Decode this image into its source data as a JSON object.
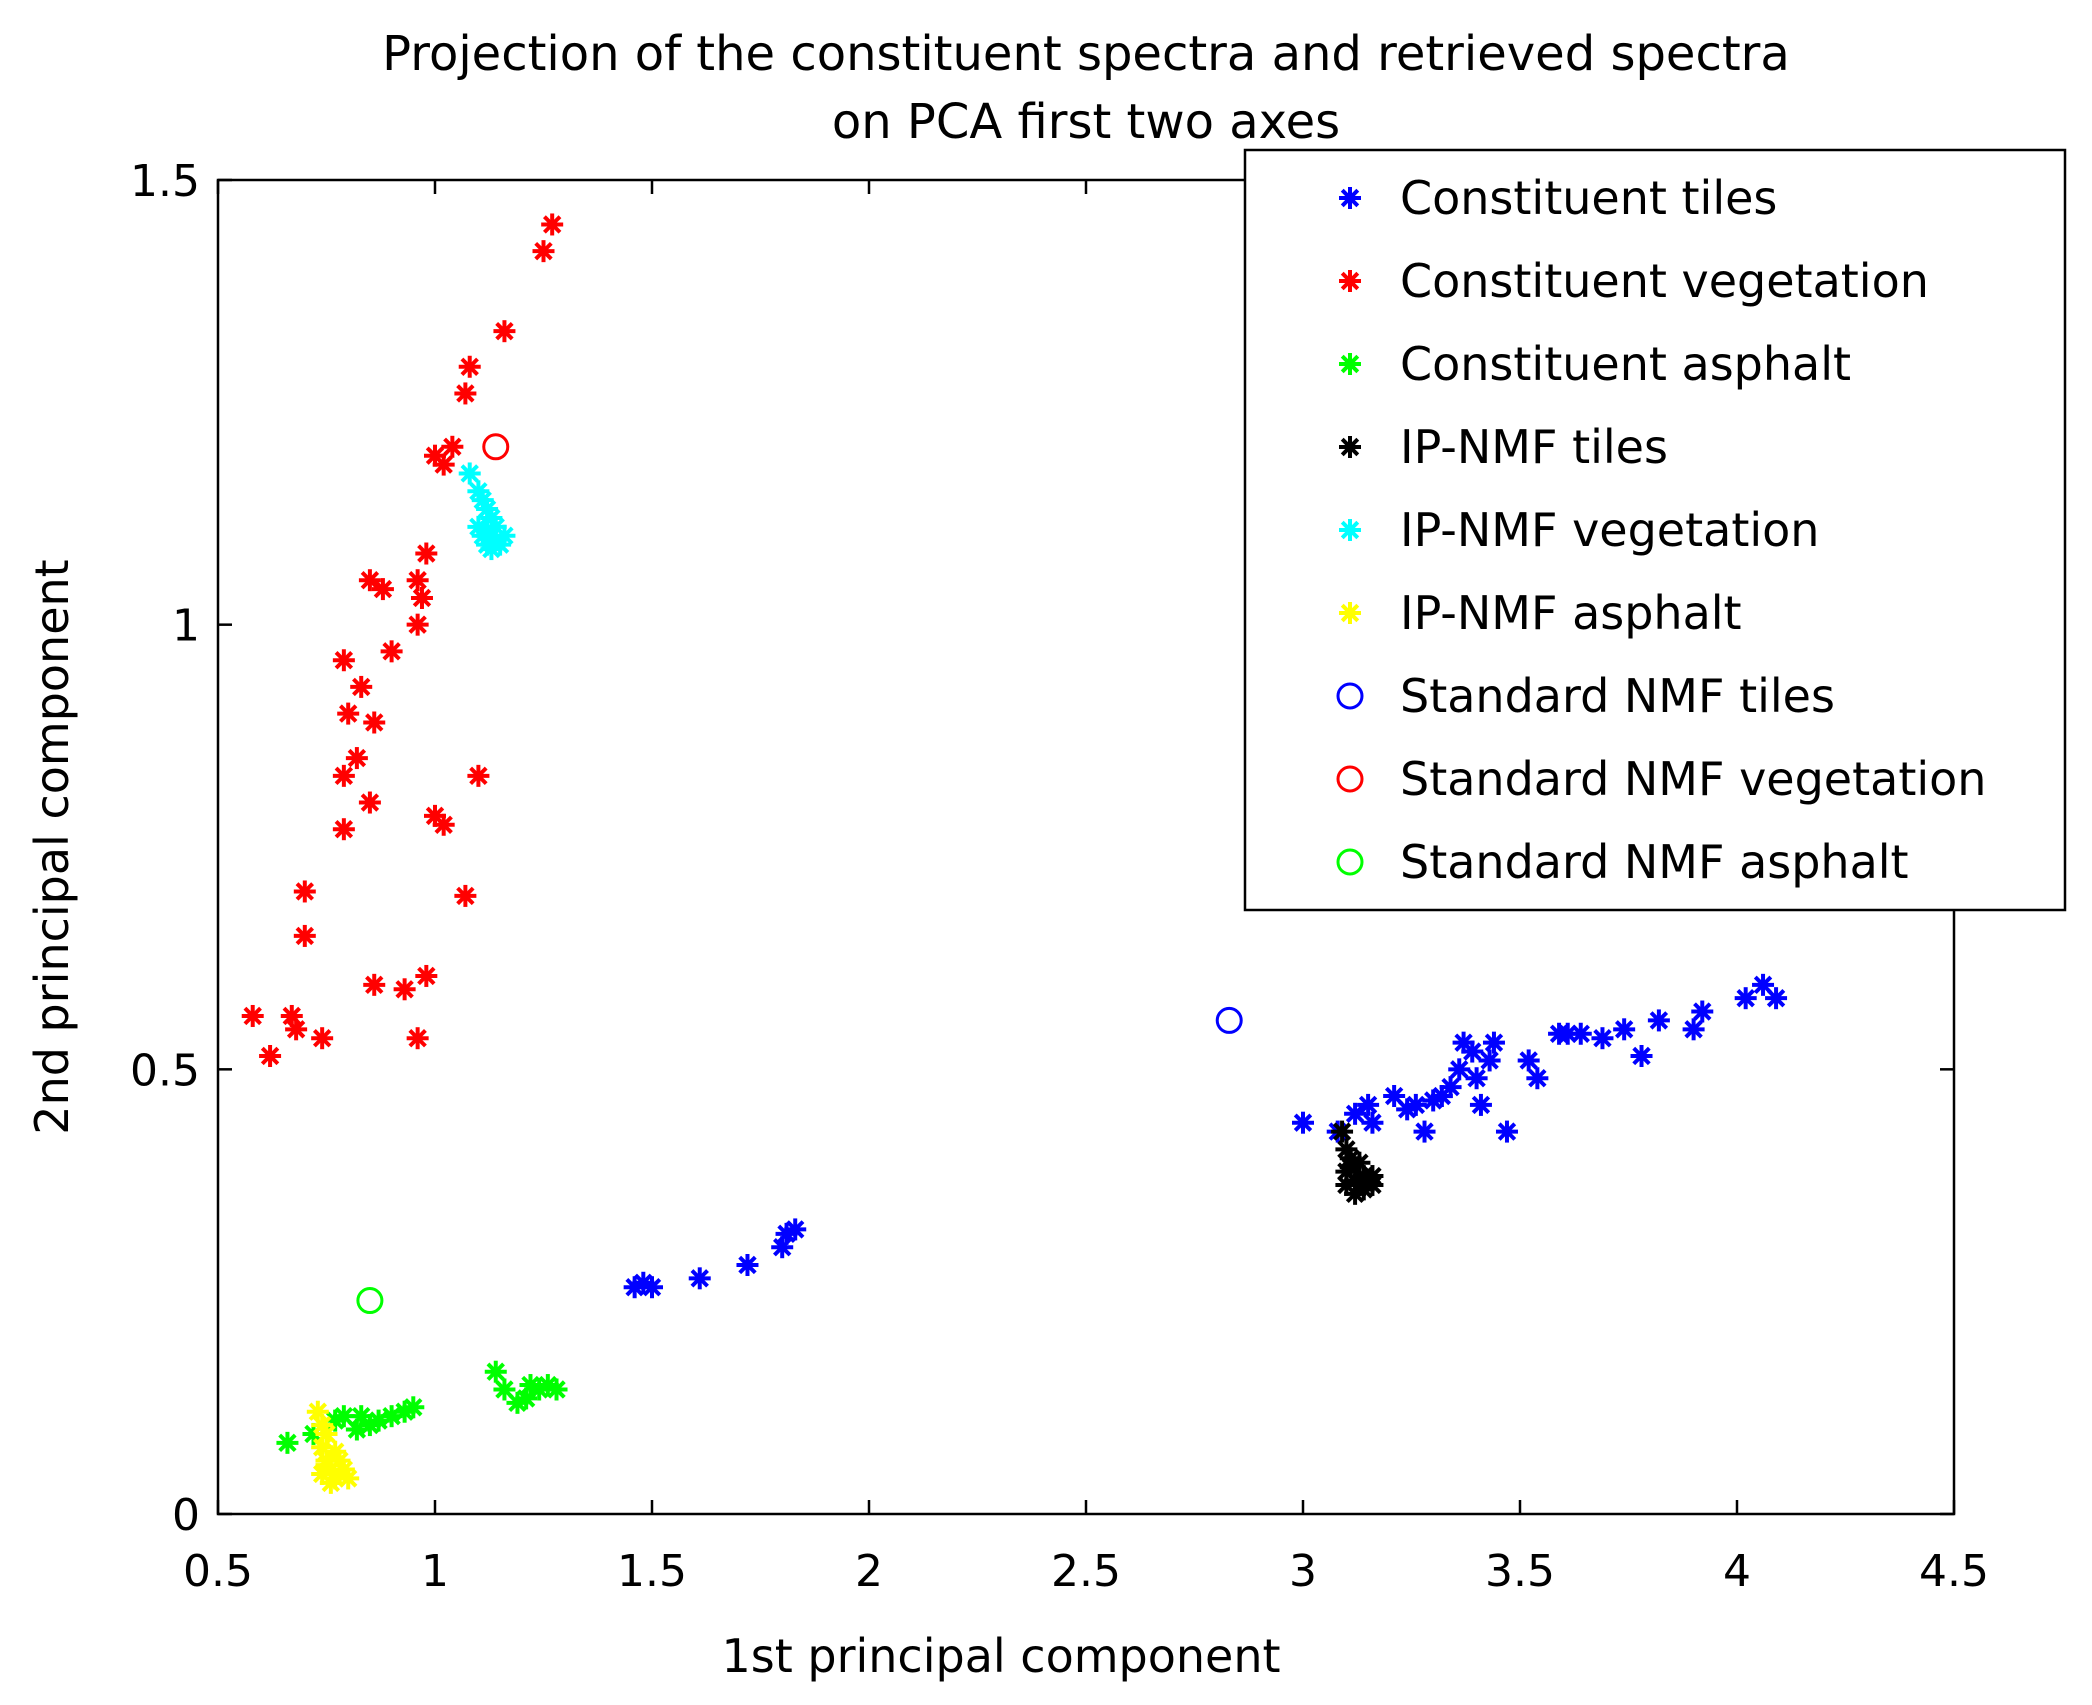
{
  "chart_data": {
    "type": "scatter",
    "title_line1": "Projection of the constituent spectra and retrieved spectra",
    "title_line2": "on PCA first two axes",
    "xlabel": "1st principal component",
    "ylabel": "2nd principal component",
    "xlim": [
      0.5,
      4.5
    ],
    "ylim": [
      0,
      1.5
    ],
    "xticks": [
      0.5,
      1,
      1.5,
      2,
      2.5,
      3,
      3.5,
      4,
      4.5
    ],
    "xtick_labels": [
      "0.5",
      "1",
      "1.5",
      "2",
      "2.5",
      "3",
      "3.5",
      "4",
      "4.5"
    ],
    "yticks": [
      0,
      0.5,
      1,
      1.5
    ],
    "ytick_labels": [
      "0",
      "0.5",
      "1",
      "1.5"
    ],
    "grid": false,
    "legend_position": "top-right",
    "series": [
      {
        "name": "Constituent tiles",
        "marker": "star",
        "color": "#0000ff",
        "points": [
          [
            1.46,
            0.255
          ],
          [
            1.48,
            0.26
          ],
          [
            1.5,
            0.255
          ],
          [
            1.61,
            0.265
          ],
          [
            1.72,
            0.28
          ],
          [
            1.8,
            0.3
          ],
          [
            1.81,
            0.315
          ],
          [
            1.83,
            0.32
          ],
          [
            3.0,
            0.44
          ],
          [
            3.08,
            0.43
          ],
          [
            3.12,
            0.45
          ],
          [
            3.15,
            0.46
          ],
          [
            3.16,
            0.44
          ],
          [
            3.21,
            0.47
          ],
          [
            3.24,
            0.455
          ],
          [
            3.26,
            0.46
          ],
          [
            3.28,
            0.43
          ],
          [
            3.3,
            0.465
          ],
          [
            3.32,
            0.47
          ],
          [
            3.34,
            0.48
          ],
          [
            3.36,
            0.5
          ],
          [
            3.37,
            0.53
          ],
          [
            3.39,
            0.52
          ],
          [
            3.4,
            0.49
          ],
          [
            3.41,
            0.46
          ],
          [
            3.43,
            0.51
          ],
          [
            3.44,
            0.53
          ],
          [
            3.47,
            0.43
          ],
          [
            3.52,
            0.51
          ],
          [
            3.54,
            0.49
          ],
          [
            3.59,
            0.54
          ],
          [
            3.61,
            0.54
          ],
          [
            3.64,
            0.54
          ],
          [
            3.69,
            0.535
          ],
          [
            3.74,
            0.545
          ],
          [
            3.78,
            0.515
          ],
          [
            3.82,
            0.555
          ],
          [
            3.9,
            0.545
          ],
          [
            3.92,
            0.565
          ],
          [
            4.02,
            0.58
          ],
          [
            4.06,
            0.595
          ],
          [
            4.09,
            0.58
          ]
        ]
      },
      {
        "name": "Constituent vegetation",
        "marker": "star",
        "color": "#ff0000",
        "points": [
          [
            0.58,
            0.56
          ],
          [
            0.62,
            0.515
          ],
          [
            0.67,
            0.56
          ],
          [
            0.68,
            0.545
          ],
          [
            0.74,
            0.535
          ],
          [
            0.7,
            0.7
          ],
          [
            0.7,
            0.65
          ],
          [
            0.79,
            0.77
          ],
          [
            0.79,
            0.83
          ],
          [
            0.8,
            0.9
          ],
          [
            0.82,
            0.85
          ],
          [
            0.83,
            0.93
          ],
          [
            0.79,
            0.96
          ],
          [
            0.85,
            0.8
          ],
          [
            0.86,
            0.89
          ],
          [
            0.86,
            0.595
          ],
          [
            0.93,
            0.59
          ],
          [
            0.96,
            0.535
          ],
          [
            0.98,
            0.605
          ],
          [
            0.85,
            1.05
          ],
          [
            0.88,
            1.04
          ],
          [
            0.9,
            0.97
          ],
          [
            0.96,
            1.0
          ],
          [
            0.97,
            1.03
          ],
          [
            0.96,
            1.05
          ],
          [
            0.98,
            1.08
          ],
          [
            1.0,
            0.785
          ],
          [
            1.02,
            0.775
          ],
          [
            1.07,
            0.695
          ],
          [
            1.1,
            0.83
          ],
          [
            1.0,
            1.19
          ],
          [
            1.02,
            1.18
          ],
          [
            1.04,
            1.2
          ],
          [
            1.07,
            1.26
          ],
          [
            1.08,
            1.29
          ],
          [
            1.16,
            1.33
          ],
          [
            1.25,
            1.42
          ],
          [
            1.27,
            1.45
          ]
        ]
      },
      {
        "name": "Constituent asphalt",
        "marker": "star",
        "color": "#00ff00",
        "points": [
          [
            0.66,
            0.08
          ],
          [
            0.72,
            0.09
          ],
          [
            0.77,
            0.105
          ],
          [
            0.79,
            0.11
          ],
          [
            0.82,
            0.095
          ],
          [
            0.83,
            0.11
          ],
          [
            0.85,
            0.1
          ],
          [
            0.87,
            0.105
          ],
          [
            0.9,
            0.11
          ],
          [
            0.93,
            0.115
          ],
          [
            0.95,
            0.12
          ],
          [
            1.14,
            0.16
          ],
          [
            1.16,
            0.14
          ],
          [
            1.19,
            0.125
          ],
          [
            1.21,
            0.13
          ],
          [
            1.22,
            0.145
          ],
          [
            1.24,
            0.14
          ],
          [
            1.26,
            0.145
          ],
          [
            1.28,
            0.14
          ]
        ]
      },
      {
        "name": "IP-NMF tiles",
        "marker": "star",
        "color": "#000000",
        "points": [
          [
            3.09,
            0.43
          ],
          [
            3.1,
            0.41
          ],
          [
            3.11,
            0.4
          ],
          [
            3.1,
            0.385
          ],
          [
            3.12,
            0.375
          ],
          [
            3.13,
            0.37
          ],
          [
            3.14,
            0.38
          ],
          [
            3.12,
            0.36
          ],
          [
            3.15,
            0.375
          ],
          [
            3.16,
            0.38
          ],
          [
            3.11,
            0.39
          ],
          [
            3.14,
            0.365
          ],
          [
            3.13,
            0.395
          ],
          [
            3.1,
            0.37
          ],
          [
            3.16,
            0.37
          ]
        ]
      },
      {
        "name": "IP-NMF vegetation",
        "marker": "star",
        "color": "#00ffff",
        "points": [
          [
            1.08,
            1.17
          ],
          [
            1.1,
            1.15
          ],
          [
            1.11,
            1.14
          ],
          [
            1.12,
            1.13
          ],
          [
            1.13,
            1.12
          ],
          [
            1.1,
            1.11
          ],
          [
            1.11,
            1.1
          ],
          [
            1.12,
            1.09
          ],
          [
            1.13,
            1.1
          ],
          [
            1.14,
            1.095
          ],
          [
            1.15,
            1.09
          ],
          [
            1.16,
            1.1
          ],
          [
            1.14,
            1.11
          ],
          [
            1.12,
            1.105
          ],
          [
            1.13,
            1.085
          ]
        ]
      },
      {
        "name": "IP-NMF asphalt",
        "marker": "star",
        "color": "#ffff00",
        "points": [
          [
            0.73,
            0.115
          ],
          [
            0.74,
            0.1
          ],
          [
            0.75,
            0.09
          ],
          [
            0.74,
            0.075
          ],
          [
            0.75,
            0.06
          ],
          [
            0.76,
            0.05
          ],
          [
            0.74,
            0.045
          ],
          [
            0.77,
            0.04
          ],
          [
            0.78,
            0.045
          ],
          [
            0.79,
            0.05
          ],
          [
            0.76,
            0.035
          ],
          [
            0.75,
            0.055
          ],
          [
            0.78,
            0.06
          ],
          [
            0.77,
            0.07
          ],
          [
            0.8,
            0.04
          ]
        ]
      },
      {
        "name": "Standard NMF tiles",
        "marker": "circle",
        "color": "#0000ff",
        "points": [
          [
            2.83,
            0.555
          ]
        ]
      },
      {
        "name": "Standard NMF vegetation",
        "marker": "circle",
        "color": "#ff0000",
        "points": [
          [
            1.14,
            1.2
          ]
        ]
      },
      {
        "name": "Standard NMF asphalt",
        "marker": "circle",
        "color": "#00ff00",
        "points": [
          [
            0.85,
            0.24
          ]
        ]
      }
    ]
  }
}
